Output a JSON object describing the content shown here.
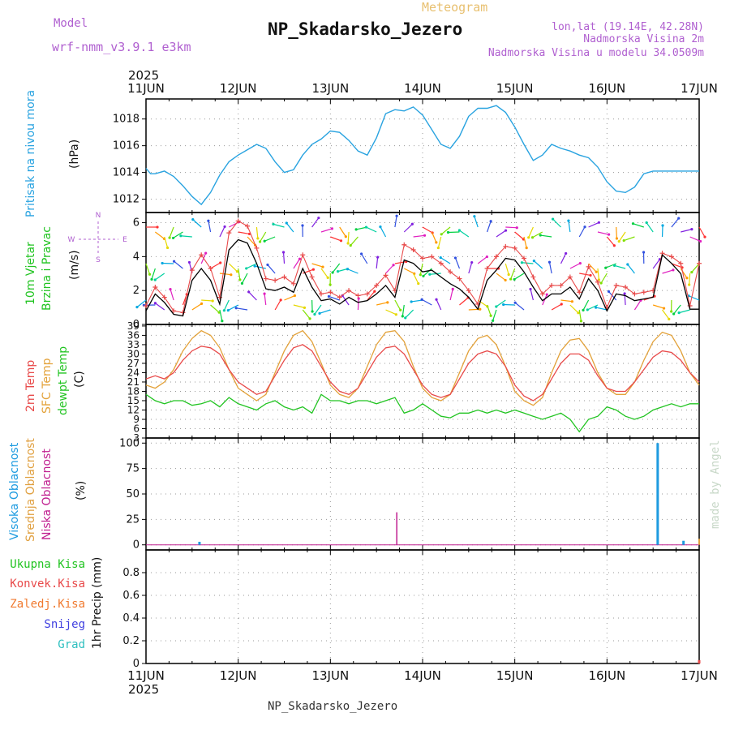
{
  "header": {
    "model_label": "Model",
    "model_name": "wrf-nmm_v3.9.1 e3km",
    "subtitle": "Meteogram",
    "title": "NP_Skadarsko_Jezero",
    "coords": "lon,lat (19.14E, 42.28N)",
    "elevation": "Nadmorska Visina 2m",
    "model_elevation": "Nadmorska Visina u modelu 34.0509m",
    "footer_title": "NP_Skadarsko_Jezero",
    "watermark": "made by Angel"
  },
  "colors": {
    "pressure": "#29a3e0",
    "temp2m": "#e84a4a",
    "sfc": "#e3a23a",
    "dew": "#22c422",
    "high_cloud": "#1e9be0",
    "mid_cloud": "#e0a040",
    "low_cloud": "#c02090",
    "title_purple": "#b060d0",
    "subtitle_orange": "#e8c070"
  },
  "chart_data": [
    {
      "id": "pressure",
      "type": "line",
      "title": "Pritisak na nivou mora",
      "ylabel": "(hPa)",
      "ylim": [
        1011,
        1019.5
      ],
      "yticks": [
        "1012",
        "1014",
        "1016",
        "1018"
      ],
      "ytick_values": [
        1012,
        1014,
        1016,
        1018
      ],
      "x_dates": [
        "11JUN",
        "12JUN",
        "13JUN",
        "14JUN",
        "15JUN",
        "16JUN",
        "17JUN"
      ],
      "year": "2025",
      "series": [
        {
          "name": "Pressure",
          "t": [
            0,
            0.05,
            0.1,
            0.2,
            0.3,
            0.4,
            0.5,
            0.6,
            0.7,
            0.8,
            0.9,
            1.0,
            1.1,
            1.2,
            1.3,
            1.4,
            1.5,
            1.6,
            1.7,
            1.8,
            1.9,
            2.0,
            2.1,
            2.2,
            2.3,
            2.4,
            2.5,
            2.6,
            2.7,
            2.8,
            2.9,
            3.0,
            3.1,
            3.2,
            3.3,
            3.4,
            3.5,
            3.6,
            3.7,
            3.8,
            3.9,
            4.0,
            4.1,
            4.2,
            4.3,
            4.4,
            4.5,
            4.6,
            4.7,
            4.8,
            4.9,
            5.0,
            5.1,
            5.2,
            5.3,
            5.4,
            5.5,
            5.6,
            5.7,
            5.8,
            5.9,
            6.0
          ],
          "values": [
            1014.3,
            1013.9,
            1013.9,
            1014.1,
            1013.7,
            1013.0,
            1012.2,
            1011.6,
            1012.5,
            1013.8,
            1014.8,
            1015.3,
            1015.7,
            1016.1,
            1015.8,
            1014.8,
            1014.0,
            1014.2,
            1015.3,
            1016.1,
            1016.5,
            1017.1,
            1017.0,
            1016.4,
            1015.6,
            1015.3,
            1016.6,
            1018.4,
            1018.7,
            1018.6,
            1018.9,
            1018.3,
            1017.2,
            1016.1,
            1015.8,
            1016.7,
            1018.2,
            1018.8,
            1018.8,
            1019.0,
            1018.5,
            1017.4,
            1016.1,
            1014.9,
            1015.3,
            1016.1,
            1015.8,
            1015.6,
            1015.3,
            1015.1,
            1014.4,
            1013.3,
            1012.6,
            1012.5,
            1012.9,
            1013.9,
            1014.1,
            1014.1,
            1014.1,
            1014.1,
            1014.1,
            1014.1
          ]
        }
      ]
    },
    {
      "id": "wind",
      "type": "line",
      "title": "10m Vjetar Brzina i Pravac",
      "title_line1": "10m Vjetar",
      "title_line2": "Brzina i Pravac",
      "ylabel": "(m/s)",
      "ylim": [
        0,
        6.6
      ],
      "yticks": [
        "0",
        "2",
        "4",
        "6"
      ],
      "ytick_values": [
        0,
        2,
        4,
        6
      ],
      "compass": {
        "n": "N",
        "s": "S",
        "e": "E",
        "w": "W"
      },
      "series": [
        {
          "name": "Mean wind",
          "color": "#000000",
          "t": [
            0,
            0.1,
            0.2,
            0.3,
            0.4,
            0.5,
            0.6,
            0.7,
            0.8,
            0.9,
            1.0,
            1.1,
            1.2,
            1.3,
            1.4,
            1.5,
            1.6,
            1.7,
            1.8,
            1.9,
            2.0,
            2.1,
            2.2,
            2.3,
            2.4,
            2.5,
            2.6,
            2.7,
            2.8,
            2.9,
            3.0,
            3.1,
            3.2,
            3.3,
            3.4,
            3.5,
            3.6,
            3.7,
            3.8,
            3.9,
            4.0,
            4.1,
            4.2,
            4.3,
            4.4,
            4.5,
            4.6,
            4.7,
            4.8,
            4.9,
            5.0,
            5.1,
            5.2,
            5.3,
            5.4,
            5.5,
            5.6,
            5.7,
            5.8,
            5.9,
            6.0
          ],
          "values": [
            0.8,
            1.8,
            1.3,
            0.6,
            0.5,
            2.6,
            3.3,
            2.6,
            1.2,
            4.4,
            5.0,
            4.8,
            3.6,
            2.1,
            2.0,
            2.2,
            1.9,
            3.3,
            2.2,
            1.4,
            1.5,
            1.2,
            1.6,
            1.3,
            1.4,
            1.8,
            2.3,
            1.6,
            3.8,
            3.6,
            3.1,
            3.2,
            2.8,
            2.4,
            2.1,
            1.6,
            0.9,
            2.6,
            3.2,
            3.9,
            3.8,
            3.1,
            2.2,
            1.4,
            1.8,
            1.8,
            2.2,
            1.5,
            2.7,
            2.0,
            0.8,
            1.8,
            1.7,
            1.4,
            1.5,
            1.6,
            4.1,
            3.6,
            3.0,
            0.9,
            0.9
          ]
        },
        {
          "name": "Gust",
          "color": "#e84a4a",
          "t": [
            0,
            0.1,
            0.2,
            0.3,
            0.4,
            0.5,
            0.6,
            0.7,
            0.8,
            0.9,
            1.0,
            1.1,
            1.2,
            1.3,
            1.4,
            1.5,
            1.6,
            1.7,
            1.8,
            1.9,
            2.0,
            2.1,
            2.2,
            2.3,
            2.4,
            2.5,
            2.6,
            2.7,
            2.8,
            2.9,
            3.0,
            3.1,
            3.2,
            3.3,
            3.4,
            3.5,
            3.6,
            3.7,
            3.8,
            3.9,
            4.0,
            4.1,
            4.2,
            4.3,
            4.4,
            4.5,
            4.6,
            4.7,
            4.8,
            4.9,
            5.0,
            5.1,
            5.2,
            5.3,
            5.4,
            5.5,
            5.6,
            5.7,
            5.8,
            5.9,
            6.0
          ],
          "values": [
            1.1,
            2.2,
            1.6,
            0.8,
            0.7,
            3.2,
            4.1,
            3.3,
            1.6,
            5.4,
            6.1,
            5.8,
            4.5,
            2.7,
            2.6,
            2.8,
            2.4,
            4.1,
            2.8,
            1.8,
            1.9,
            1.6,
            2.0,
            1.7,
            1.8,
            2.3,
            2.9,
            2.0,
            4.7,
            4.4,
            3.9,
            4.0,
            3.6,
            3.1,
            2.7,
            2.0,
            1.2,
            3.3,
            4.0,
            4.6,
            4.5,
            3.9,
            2.8,
            1.8,
            2.3,
            2.3,
            2.8,
            1.9,
            3.4,
            2.5,
            1.0,
            2.3,
            2.2,
            1.8,
            1.9,
            2.0,
            4.2,
            4.0,
            3.6,
            1.1,
            3.6
          ]
        }
      ]
    },
    {
      "id": "temperature",
      "type": "line",
      "title": "2m Temp / SFC Temp / dewpt Temp",
      "label_2m": "2m Temp",
      "label_sfc": "SFC Temp",
      "label_dew": "dewpt Temp",
      "ylabel": "(C)",
      "ylim": [
        3,
        39.5
      ],
      "yticks": [
        "3",
        "6",
        "9",
        "12",
        "15",
        "18",
        "21",
        "24",
        "27",
        "30",
        "33",
        "36",
        "39"
      ],
      "ytick_values": [
        3,
        6,
        9,
        12,
        15,
        18,
        21,
        24,
        27,
        30,
        33,
        36,
        39
      ],
      "series": [
        {
          "name": "2m Temp",
          "t": [
            0,
            0.1,
            0.2,
            0.3,
            0.4,
            0.5,
            0.6,
            0.7,
            0.8,
            0.9,
            1.0,
            1.1,
            1.2,
            1.3,
            1.4,
            1.5,
            1.6,
            1.7,
            1.8,
            1.9,
            2.0,
            2.1,
            2.2,
            2.3,
            2.4,
            2.5,
            2.6,
            2.7,
            2.8,
            2.9,
            3.0,
            3.1,
            3.2,
            3.3,
            3.4,
            3.5,
            3.6,
            3.7,
            3.8,
            3.9,
            4.0,
            4.1,
            4.2,
            4.3,
            4.4,
            4.5,
            4.6,
            4.7,
            4.8,
            4.9,
            5.0,
            5.1,
            5.2,
            5.3,
            5.4,
            5.5,
            5.6,
            5.7,
            5.8,
            5.9,
            6.0
          ],
          "values": [
            22,
            23,
            22,
            24,
            28,
            31,
            32.5,
            32,
            30,
            25,
            21,
            19,
            17,
            18,
            23,
            28,
            32,
            33,
            31,
            26,
            21,
            18,
            17,
            19,
            24,
            29,
            32,
            32.5,
            30,
            25,
            20,
            17,
            16,
            17,
            22,
            27,
            30,
            31,
            30,
            26,
            20,
            16.5,
            15,
            17,
            22,
            27,
            30,
            30,
            28,
            23,
            19,
            18,
            18,
            21,
            25,
            29,
            31,
            30.5,
            28,
            24,
            21
          ]
        },
        {
          "name": "SFC Temp",
          "t": [
            0,
            0.1,
            0.2,
            0.3,
            0.4,
            0.5,
            0.6,
            0.7,
            0.8,
            0.9,
            1.0,
            1.1,
            1.2,
            1.3,
            1.4,
            1.5,
            1.6,
            1.7,
            1.8,
            1.9,
            2.0,
            2.1,
            2.2,
            2.3,
            2.4,
            2.5,
            2.6,
            2.7,
            2.8,
            2.9,
            3.0,
            3.1,
            3.2,
            3.3,
            3.4,
            3.5,
            3.6,
            3.7,
            3.8,
            3.9,
            4.0,
            4.1,
            4.2,
            4.3,
            4.4,
            4.5,
            4.6,
            4.7,
            4.8,
            4.9,
            5.0,
            5.1,
            5.2,
            5.3,
            5.4,
            5.5,
            5.6,
            5.7,
            5.8,
            5.9,
            6.0
          ],
          "values": [
            20,
            19,
            21,
            25,
            31,
            35,
            37.5,
            36,
            32,
            25,
            19,
            17,
            15,
            17,
            24,
            31,
            36,
            37.5,
            34,
            27,
            20,
            17,
            16,
            19,
            26,
            33,
            37,
            37.5,
            34,
            26,
            19,
            16,
            15,
            17,
            24,
            31,
            35,
            36,
            33,
            26,
            18,
            15,
            13.5,
            16,
            24,
            31,
            34.5,
            35,
            31,
            24,
            19,
            17,
            17,
            21,
            28,
            34,
            37,
            36,
            31,
            24,
            20
          ]
        },
        {
          "name": "dewpt Temp",
          "t": [
            0,
            0.1,
            0.2,
            0.3,
            0.4,
            0.5,
            0.6,
            0.7,
            0.8,
            0.9,
            1.0,
            1.1,
            1.2,
            1.3,
            1.4,
            1.5,
            1.6,
            1.7,
            1.8,
            1.9,
            2.0,
            2.1,
            2.2,
            2.3,
            2.4,
            2.5,
            2.6,
            2.7,
            2.8,
            2.9,
            3.0,
            3.1,
            3.2,
            3.3,
            3.4,
            3.5,
            3.6,
            3.7,
            3.8,
            3.9,
            4.0,
            4.1,
            4.2,
            4.3,
            4.4,
            4.5,
            4.6,
            4.7,
            4.8,
            4.9,
            5.0,
            5.1,
            5.2,
            5.3,
            5.4,
            5.5,
            5.6,
            5.7,
            5.8,
            5.9,
            6.0
          ],
          "values": [
            17,
            15,
            14,
            15,
            15,
            13.5,
            14,
            15,
            13,
            16,
            14,
            13,
            12,
            14,
            15,
            13,
            12,
            13,
            11,
            17,
            15,
            15,
            14,
            15,
            15,
            14,
            15,
            16,
            11,
            12,
            14,
            12,
            10,
            9.5,
            11,
            11,
            12,
            11,
            12,
            11,
            12,
            11,
            10,
            9,
            10,
            11,
            9,
            5,
            9,
            10,
            13,
            12,
            10,
            9,
            10,
            12,
            13,
            14,
            13,
            14,
            14
          ]
        }
      ]
    },
    {
      "id": "cloud",
      "type": "bar",
      "title": "Visoka / Srednja / Niska Oblacnost",
      "label_high": "Visoka Oblacnost",
      "label_mid": "Srednja Oblacnost",
      "label_low": "Niska Oblacnost",
      "ylabel": "(%)",
      "ylim": [
        -5,
        105
      ],
      "yticks": [
        "0",
        "25",
        "50",
        "75",
        "100"
      ],
      "ytick_values": [
        0,
        25,
        50,
        75,
        100
      ],
      "series": [
        {
          "name": "Visoka Oblacnost",
          "t": [
            0.58,
            5.55,
            5.83
          ],
          "values": [
            3,
            100,
            4
          ]
        },
        {
          "name": "Srednja Oblacnost",
          "t": [
            6.0
          ],
          "values": [
            6
          ]
        },
        {
          "name": "Niska Oblacnost",
          "t": [
            2.72
          ],
          "values": [
            32
          ]
        }
      ]
    },
    {
      "id": "precip",
      "type": "bar",
      "title": "1hr Precip",
      "ylabel": "1hr Precip (mm)",
      "ylim": [
        0,
        1.0
      ],
      "yticks": [
        "0",
        "0.2",
        "0.4",
        "0.6",
        "0.8"
      ],
      "ytick_values": [
        0,
        0.2,
        0.4,
        0.6,
        0.8
      ],
      "legend": [
        "Ukupna Kisa",
        "Konvek.Kisa",
        "Zaledj.Kisa",
        "Snijeg",
        "Grad"
      ],
      "legend_colors": [
        "#22c422",
        "#e84a4a",
        "#f07a30",
        "#4040e0",
        "#30c0c0"
      ],
      "x_dates": [
        "11JUN",
        "12JUN",
        "13JUN",
        "14JUN",
        "15JUN",
        "16JUN",
        "17JUN"
      ],
      "year": "2025",
      "series": [
        {
          "name": "Ukupna Kisa",
          "t": [
            6.0
          ],
          "values": [
            0.03
          ]
        }
      ]
    }
  ]
}
